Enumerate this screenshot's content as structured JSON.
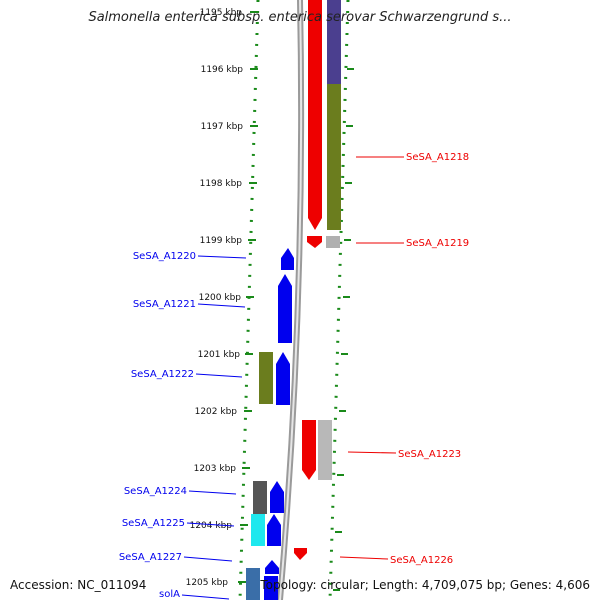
{
  "title": "Salmonella enterica subsp. enterica serovar Schwarzengrund s...",
  "footer": {
    "accession": "Accession: NC_011094",
    "topology": "Topology: circular; Length: 4,709,075 bp; Genes: 4,606"
  },
  "ticks": [
    "1195 kbp",
    "1196 kbp",
    "1197 kbp",
    "1198 kbp",
    "1199 kbp",
    "1200 kbp",
    "1201 kbp",
    "1202 kbp",
    "1203 kbp",
    "1204 kbp",
    "1205 kbp"
  ],
  "gene_labels": {
    "SeSA_A1218": "SeSA_A1218",
    "SeSA_A1219": "SeSA_A1219",
    "SeSA_A1220": "SeSA_A1220",
    "SeSA_A1221": "SeSA_A1221",
    "SeSA_A1222": "SeSA_A1222",
    "SeSA_A1223": "SeSA_A1223",
    "SeSA_A1224": "SeSA_A1224",
    "SeSA_A1225": "SeSA_A1225",
    "SeSA_A1226": "SeSA_A1226",
    "SeSA_A1227": "SeSA_A1227",
    "solA": "solA"
  },
  "colors": {
    "forward_strand": "#0000ee",
    "reverse_strand": "#ee0000",
    "cog_purple": "#4b3f8f",
    "cog_olive": "#6b7d1e",
    "cog_gray": "#b0b0b0",
    "cog_darkgray": "#555555",
    "cog_cyan": "#1ee8ee",
    "cog_steelblue": "#3a6ea8",
    "tick_green": "#1a8a1a",
    "backbone": "#8a8a8a"
  }
}
